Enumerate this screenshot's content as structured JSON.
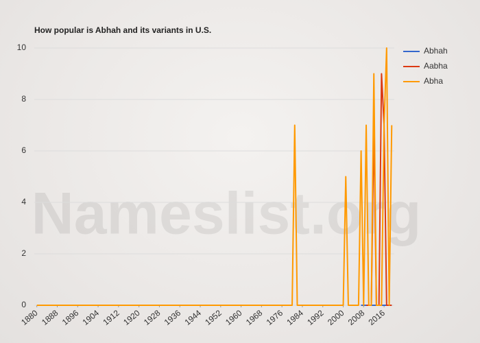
{
  "chart_data": {
    "type": "line",
    "title": "How popular is Abhah and its variants in U.S.",
    "watermark": "Nameslist.org",
    "x": [
      1880,
      1980,
      1981,
      1982,
      2000,
      2001,
      2002,
      2006,
      2007,
      2008,
      2009,
      2010,
      2011,
      2012,
      2013,
      2014,
      2015,
      2016,
      2017,
      2018,
      2019
    ],
    "series": [
      {
        "name": "Abhah",
        "color": "#3366cc",
        "values": [
          null,
          null,
          null,
          null,
          null,
          null,
          null,
          null,
          0,
          0,
          0,
          0,
          0,
          0,
          0,
          0,
          0,
          0,
          0,
          0,
          0
        ]
      },
      {
        "name": "Aabha",
        "color": "#dc3912",
        "values": [
          null,
          null,
          null,
          null,
          null,
          null,
          null,
          null,
          null,
          null,
          0,
          0,
          0,
          7,
          0,
          0,
          9,
          7,
          0,
          0,
          0
        ]
      },
      {
        "name": "Abha",
        "color": "#ff9900",
        "values": [
          0,
          0,
          7,
          0,
          0,
          5,
          0,
          0,
          6,
          0,
          7,
          0,
          0,
          9,
          0,
          0,
          0,
          7,
          10,
          0,
          7
        ]
      }
    ],
    "xlim": [
      1879,
      2020
    ],
    "xticks": [
      1880,
      1888,
      1896,
      1904,
      1912,
      1920,
      1928,
      1936,
      1944,
      1952,
      1960,
      1968,
      1976,
      1984,
      1992,
      2000,
      2008,
      2016
    ],
    "ylim": [
      0,
      10
    ],
    "yticks": [
      0,
      2,
      4,
      6,
      8,
      10
    ],
    "grid": true,
    "legend": "right"
  }
}
